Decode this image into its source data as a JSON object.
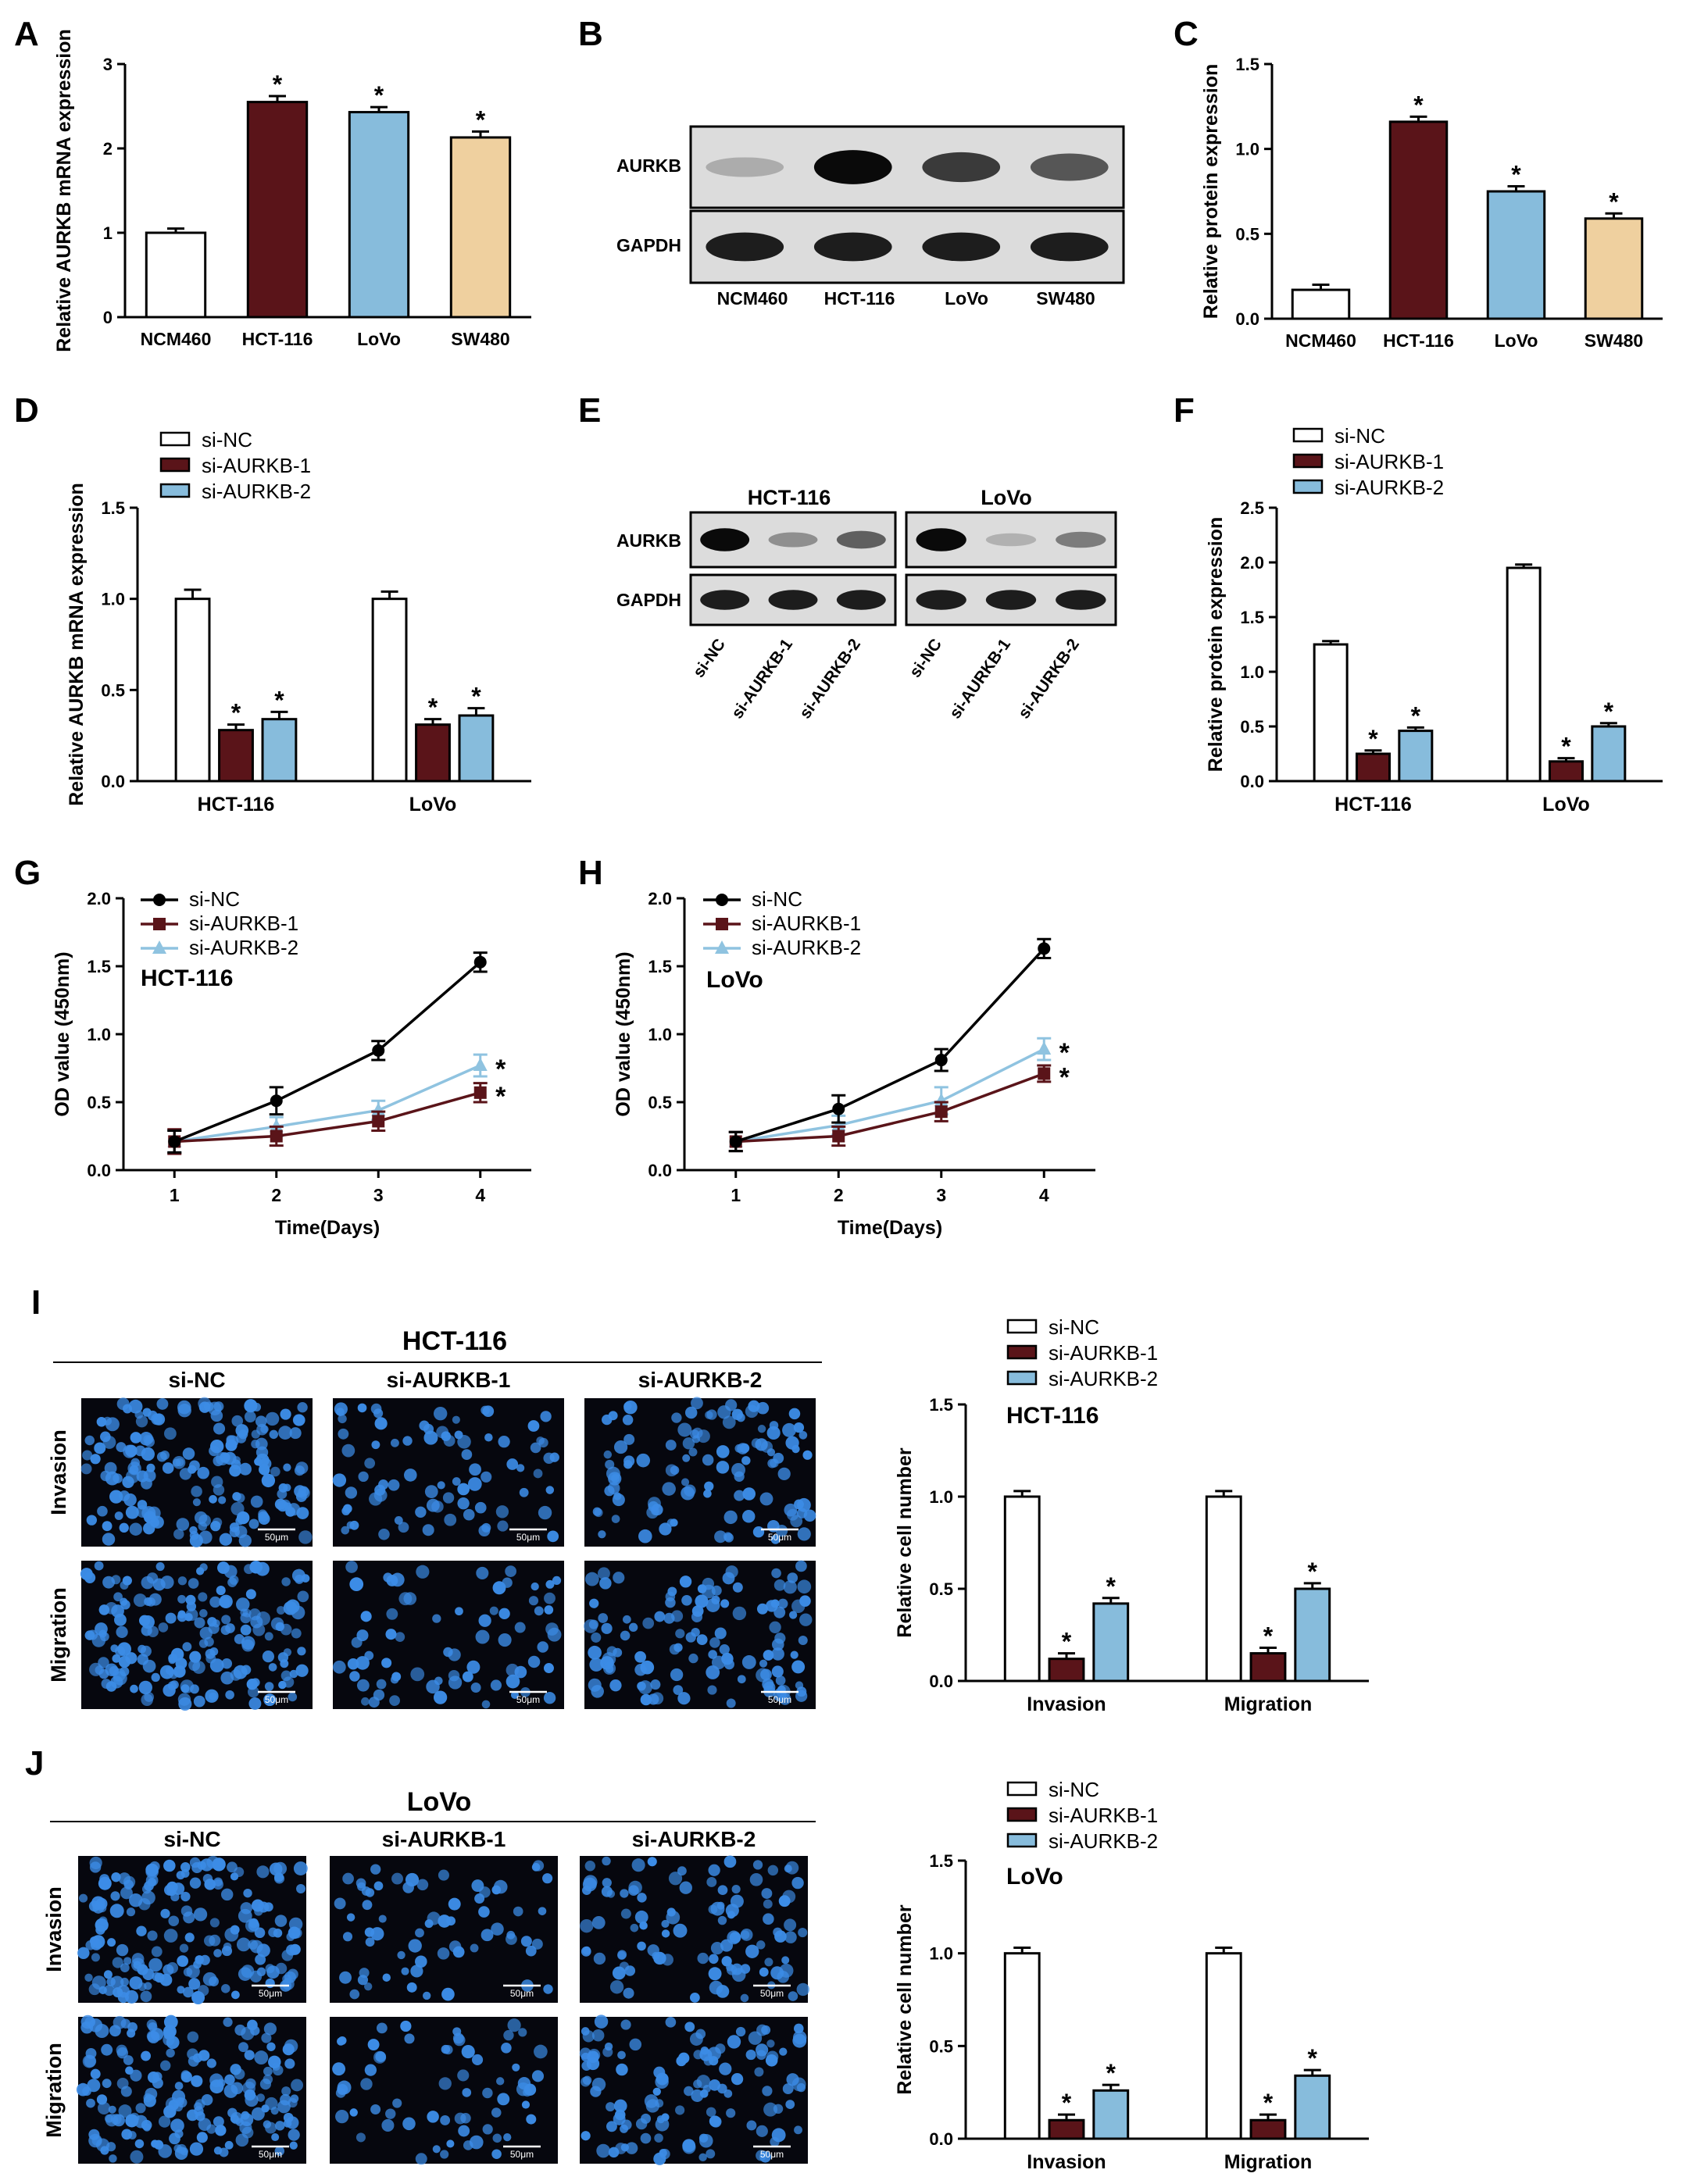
{
  "colors": {
    "si_nc": "#ffffff",
    "si_aurkb_1": "#5a1419",
    "si_aurkb_2": "#87bcdc",
    "sw480": "#efd09f",
    "line_si_aurkb_2": "#8fc3e0",
    "blot_background": "#dcdcdc",
    "cell_background": "#06070e",
    "nucleus": "#3c8ce6"
  },
  "panel_letters": [
    "A",
    "B",
    "C",
    "D",
    "E",
    "F",
    "G",
    "H",
    "I",
    "J"
  ],
  "significance_marker": "*",
  "legend_labels": [
    "si-NC",
    "si-AURKB-1",
    "si-AURKB-2"
  ],
  "panel_B": {
    "row_labels": [
      "AURKB",
      "GAPDH"
    ],
    "lane_labels": [
      "NCM460",
      "HCT-116",
      "LoVo",
      "SW480"
    ],
    "aurkb_band_intensity": [
      0.15,
      1.0,
      0.75,
      0.6
    ],
    "gapdh_band_intensity": [
      0.9,
      0.9,
      0.9,
      0.9
    ]
  },
  "panel_E": {
    "group_labels": [
      "HCT-116",
      "LoVo"
    ],
    "row_labels": [
      "AURKB",
      "GAPDH"
    ],
    "lane_labels": [
      "si-NC",
      "si-AURKB-1",
      "si-AURKB-2",
      "si-NC",
      "si-AURKB-1",
      "si-AURKB-2"
    ],
    "aurkb_band_intensity": [
      1.0,
      0.3,
      0.55,
      1.0,
      0.12,
      0.4
    ],
    "gapdh_band_intensity": [
      0.9,
      0.9,
      0.9,
      0.9,
      0.9,
      0.9
    ]
  },
  "image_panels": [
    {
      "title": "HCT-116",
      "column_labels": [
        "si-NC",
        "si-AURKB-1",
        "si-AURKB-2"
      ],
      "row_labels": [
        "Invasion",
        "Migration"
      ],
      "scale_bar_label": "50μm",
      "cell_density": [
        [
          1.0,
          0.35,
          0.55
        ],
        [
          1.0,
          0.3,
          0.6
        ]
      ]
    },
    {
      "title": "LoVo",
      "column_labels": [
        "si-NC",
        "si-AURKB-1",
        "si-AURKB-2"
      ],
      "row_labels": [
        "Invasion",
        "Migration"
      ],
      "scale_bar_label": "50μm",
      "cell_density": [
        [
          1.0,
          0.25,
          0.5
        ],
        [
          1.0,
          0.25,
          0.6
        ]
      ]
    }
  ],
  "chart_data": [
    {
      "panel": "A",
      "type": "bar",
      "ylabel": "Relative AURKB mRNA expression",
      "ylim": [
        0,
        3
      ],
      "yticks": [
        "0",
        "1",
        "2",
        "3"
      ],
      "categories": [
        "NCM460",
        "HCT-116",
        "LoVo",
        "SW480"
      ],
      "values": [
        1.0,
        2.55,
        2.43,
        2.13
      ],
      "errors": [
        0.05,
        0.07,
        0.06,
        0.07
      ],
      "bar_colors": [
        "#ffffff",
        "#5a1419",
        "#87bcdc",
        "#efd09f"
      ],
      "significant": [
        false,
        true,
        true,
        true
      ]
    },
    {
      "panel": "C",
      "type": "bar",
      "ylabel": "Relative protein expression",
      "ylim": [
        0,
        1.5
      ],
      "yticks": [
        "0.0",
        "0.5",
        "1.0",
        "1.5"
      ],
      "categories": [
        "NCM460",
        "HCT-116",
        "LoVo",
        "SW480"
      ],
      "values": [
        0.17,
        1.16,
        0.75,
        0.59
      ],
      "errors": [
        0.03,
        0.03,
        0.03,
        0.03
      ],
      "bar_colors": [
        "#ffffff",
        "#5a1419",
        "#87bcdc",
        "#efd09f"
      ],
      "significant": [
        false,
        true,
        true,
        true
      ]
    },
    {
      "panel": "D",
      "type": "bar",
      "ylabel": "Relative AURKB mRNA expression",
      "ylim": [
        0,
        1.5
      ],
      "yticks": [
        "0.0",
        "0.5",
        "1.0",
        "1.5"
      ],
      "categories": [
        "HCT-116",
        "LoVo"
      ],
      "series": [
        {
          "name": "si-NC",
          "values": [
            1.0,
            1.0
          ],
          "errors": [
            0.05,
            0.04
          ],
          "significant": [
            false,
            false
          ]
        },
        {
          "name": "si-AURKB-1",
          "values": [
            0.28,
            0.31
          ],
          "errors": [
            0.03,
            0.03
          ],
          "significant": [
            true,
            true
          ]
        },
        {
          "name": "si-AURKB-2",
          "values": [
            0.34,
            0.36
          ],
          "errors": [
            0.04,
            0.04
          ],
          "significant": [
            true,
            true
          ]
        }
      ],
      "legend": "top-left"
    },
    {
      "panel": "F",
      "type": "bar",
      "ylabel": "Relative protein expression",
      "ylim": [
        0,
        2.5
      ],
      "yticks": [
        "0.0",
        "0.5",
        "1.0",
        "1.5",
        "2.0",
        "2.5"
      ],
      "categories": [
        "HCT-116",
        "LoVo"
      ],
      "series": [
        {
          "name": "si-NC",
          "values": [
            1.25,
            1.95
          ],
          "errors": [
            0.03,
            0.03
          ],
          "significant": [
            false,
            false
          ]
        },
        {
          "name": "si-AURKB-1",
          "values": [
            0.25,
            0.18
          ],
          "errors": [
            0.03,
            0.03
          ],
          "significant": [
            true,
            true
          ]
        },
        {
          "name": "si-AURKB-2",
          "values": [
            0.46,
            0.5
          ],
          "errors": [
            0.03,
            0.03
          ],
          "significant": [
            true,
            true
          ]
        }
      ],
      "legend": "top-left"
    },
    {
      "panel": "G",
      "type": "line",
      "ylabel": "OD value (450nm)",
      "xlabel": "Time(Days)",
      "annotation": "HCT-116",
      "ylim": [
        0,
        2.0
      ],
      "yticks": [
        "0.0",
        "0.5",
        "1.0",
        "1.5",
        "2.0"
      ],
      "x": [
        1,
        2,
        3,
        4
      ],
      "series": [
        {
          "name": "si-NC",
          "values": [
            0.21,
            0.51,
            0.88,
            1.53
          ],
          "errors": [
            0.08,
            0.1,
            0.07,
            0.07
          ],
          "marker": "circle"
        },
        {
          "name": "si-AURKB-1",
          "values": [
            0.21,
            0.25,
            0.36,
            0.57
          ],
          "errors": [
            0.09,
            0.07,
            0.07,
            0.07
          ],
          "marker": "square",
          "significant_last": true
        },
        {
          "name": "si-AURKB-2",
          "values": [
            0.21,
            0.32,
            0.44,
            0.77
          ],
          "errors": [
            0.08,
            0.07,
            0.07,
            0.08
          ],
          "marker": "triangle",
          "significant_last": true
        }
      ],
      "legend": "top-left"
    },
    {
      "panel": "H",
      "type": "line",
      "ylabel": "OD value (450nm)",
      "xlabel": "Time(Days)",
      "annotation": "LoVo",
      "ylim": [
        0,
        2.0
      ],
      "yticks": [
        "0.0",
        "0.5",
        "1.0",
        "1.5",
        "2.0"
      ],
      "x": [
        1,
        2,
        3,
        4
      ],
      "series": [
        {
          "name": "si-NC",
          "values": [
            0.21,
            0.45,
            0.81,
            1.63
          ],
          "errors": [
            0.07,
            0.1,
            0.08,
            0.07
          ],
          "marker": "circle"
        },
        {
          "name": "si-AURKB-1",
          "values": [
            0.21,
            0.25,
            0.43,
            0.71
          ],
          "errors": [
            0.07,
            0.07,
            0.07,
            0.06
          ],
          "marker": "square",
          "significant_last": true
        },
        {
          "name": "si-AURKB-2",
          "values": [
            0.21,
            0.33,
            0.51,
            0.89
          ],
          "errors": [
            0.07,
            0.07,
            0.1,
            0.08
          ],
          "marker": "triangle",
          "significant_last": true
        }
      ],
      "legend": "top-left"
    },
    {
      "panel": "I",
      "type": "bar",
      "ylabel": "Relative cell number",
      "annotation": "HCT-116",
      "ylim": [
        0,
        1.5
      ],
      "yticks": [
        "0.0",
        "0.5",
        "1.0",
        "1.5"
      ],
      "categories": [
        "Invasion",
        "Migration"
      ],
      "series": [
        {
          "name": "si-NC",
          "values": [
            1.0,
            1.0
          ],
          "errors": [
            0.03,
            0.03
          ],
          "significant": [
            false,
            false
          ]
        },
        {
          "name": "si-AURKB-1",
          "values": [
            0.12,
            0.15
          ],
          "errors": [
            0.03,
            0.03
          ],
          "significant": [
            true,
            true
          ]
        },
        {
          "name": "si-AURKB-2",
          "values": [
            0.42,
            0.5
          ],
          "errors": [
            0.03,
            0.03
          ],
          "significant": [
            true,
            true
          ]
        }
      ],
      "legend": "top-left"
    },
    {
      "panel": "J",
      "type": "bar",
      "ylabel": "Relative cell number",
      "annotation": "LoVo",
      "ylim": [
        0,
        1.5
      ],
      "yticks": [
        "0.0",
        "0.5",
        "1.0",
        "1.5"
      ],
      "categories": [
        "Invasion",
        "Migration"
      ],
      "series": [
        {
          "name": "si-NC",
          "values": [
            1.0,
            1.0
          ],
          "errors": [
            0.03,
            0.03
          ],
          "significant": [
            false,
            false
          ]
        },
        {
          "name": "si-AURKB-1",
          "values": [
            0.1,
            0.1
          ],
          "errors": [
            0.03,
            0.03
          ],
          "significant": [
            true,
            true
          ]
        },
        {
          "name": "si-AURKB-2",
          "values": [
            0.26,
            0.34
          ],
          "errors": [
            0.03,
            0.03
          ],
          "significant": [
            true,
            true
          ]
        }
      ],
      "legend": "top-left"
    }
  ]
}
